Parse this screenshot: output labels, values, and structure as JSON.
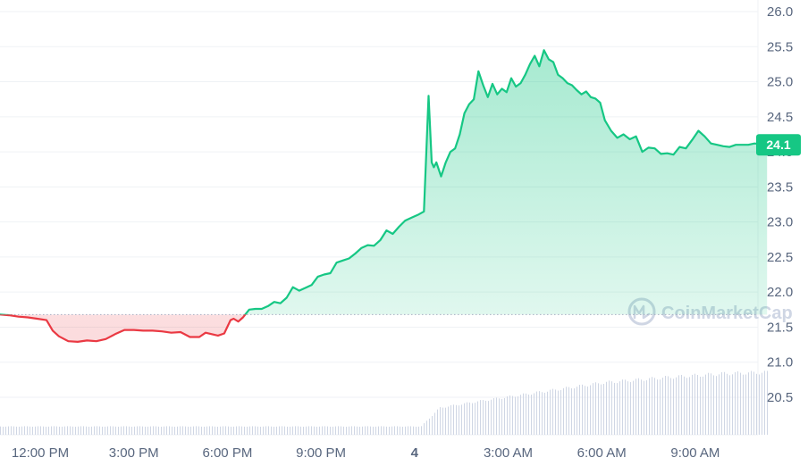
{
  "chart_data": {
    "type": "area",
    "title": "",
    "xlabel": "",
    "ylabel": "",
    "ylim": [
      20.3,
      26.1
    ],
    "y_ticks": [
      "26.0",
      "25.5",
      "25.0",
      "24.5",
      "24.0",
      "23.5",
      "23.0",
      "22.5",
      "22.0",
      "21.5",
      "21.0",
      "20.5"
    ],
    "x_ticks": [
      {
        "label": "12:00 PM",
        "t": 0
      },
      {
        "label": "3:00 PM",
        "t": 3
      },
      {
        "label": "6:00 PM",
        "t": 6
      },
      {
        "label": "9:00 PM",
        "t": 9
      },
      {
        "label": "4",
        "t": 12,
        "bold": true
      },
      {
        "label": "3:00 AM",
        "t": 15
      },
      {
        "label": "6:00 AM",
        "t": 18
      },
      {
        "label": "9:00 AM",
        "t": 21
      }
    ],
    "x_range_hours": [
      -1.3,
      23.9
    ],
    "reference_price": 21.68,
    "current_price": "24.1",
    "colors": {
      "up": "#16c784",
      "down": "#ea3943",
      "grid": "#eff2f5",
      "reference": "#a6b0c3",
      "volume": "#cfd6e4"
    },
    "series": [
      {
        "x_hours": [
          -1.3,
          -1.0,
          -0.7,
          -0.4,
          -0.1,
          0.2,
          0.4,
          0.6,
          0.9,
          1.2,
          1.5,
          1.8,
          2.1,
          2.4,
          2.7,
          3.0,
          3.3,
          3.6,
          3.9,
          4.2,
          4.5,
          4.8,
          5.1,
          5.3,
          5.5,
          5.7,
          5.9,
          6.1,
          6.2,
          6.35,
          6.5,
          6.7,
          6.9,
          7.1,
          7.3,
          7.5,
          7.7,
          7.9,
          8.1,
          8.3,
          8.5,
          8.7,
          8.9,
          9.1,
          9.3,
          9.5,
          9.7,
          9.9,
          10.1,
          10.3,
          10.5,
          10.7,
          10.9,
          11.1,
          11.3,
          11.5,
          11.7,
          11.9,
          12.1,
          12.3,
          12.45,
          12.55,
          12.62,
          12.7,
          12.85,
          13.0,
          13.15,
          13.3,
          13.45,
          13.6,
          13.75,
          13.9,
          14.05,
          14.2,
          14.35,
          14.5,
          14.65,
          14.8,
          14.95,
          15.1,
          15.25,
          15.4,
          15.55,
          15.7,
          15.85,
          16.0,
          16.15,
          16.3,
          16.45,
          16.6,
          16.75,
          16.9,
          17.05,
          17.2,
          17.35,
          17.5,
          17.65,
          17.8,
          17.95,
          18.1,
          18.3,
          18.5,
          18.7,
          18.9,
          19.1,
          19.3,
          19.5,
          19.7,
          19.9,
          20.1,
          20.3,
          20.5,
          20.7,
          20.9,
          21.1,
          21.3,
          21.5,
          21.7,
          21.9,
          22.1,
          22.3,
          22.5,
          22.7,
          22.9,
          23.1,
          23.3
        ],
        "y": [
          21.68,
          21.67,
          21.65,
          21.64,
          21.62,
          21.6,
          21.45,
          21.37,
          21.3,
          21.29,
          21.31,
          21.3,
          21.33,
          21.4,
          21.46,
          21.46,
          21.45,
          21.45,
          21.44,
          21.42,
          21.43,
          21.36,
          21.36,
          21.42,
          21.4,
          21.38,
          21.41,
          21.6,
          21.62,
          21.58,
          21.64,
          21.75,
          21.76,
          21.76,
          21.8,
          21.86,
          21.84,
          21.92,
          22.07,
          22.02,
          22.06,
          22.1,
          22.22,
          22.25,
          22.27,
          22.42,
          22.45,
          22.48,
          22.55,
          22.63,
          22.67,
          22.66,
          22.74,
          22.88,
          22.83,
          22.93,
          23.02,
          23.06,
          23.1,
          23.15,
          24.8,
          23.85,
          23.78,
          23.85,
          23.65,
          23.85,
          24.0,
          24.05,
          24.25,
          24.55,
          24.68,
          24.75,
          25.15,
          24.95,
          24.78,
          24.97,
          24.82,
          24.9,
          24.85,
          25.05,
          24.93,
          24.98,
          25.1,
          25.25,
          25.37,
          25.22,
          25.45,
          25.32,
          25.28,
          25.1,
          25.05,
          24.98,
          24.95,
          24.88,
          24.82,
          24.86,
          24.78,
          24.76,
          24.7,
          24.45,
          24.3,
          24.2,
          24.25,
          24.18,
          24.22,
          24.0,
          24.06,
          24.05,
          23.97,
          23.98,
          23.96,
          24.07,
          24.05,
          24.17,
          24.3,
          24.22,
          24.12,
          24.1,
          24.08,
          24.07,
          24.1,
          24.1,
          24.1,
          24.12,
          24.11,
          24.1
        ]
      }
    ],
    "volume": {
      "unit": "relative",
      "x_hours": [
        -1.3,
        12.2,
        12.8,
        14.0,
        16.0,
        18.0,
        20.0,
        22.0,
        23.3
      ],
      "y": [
        0.08,
        0.08,
        0.26,
        0.32,
        0.41,
        0.5,
        0.55,
        0.59,
        0.6
      ]
    },
    "watermark": "CoinMarketCap"
  }
}
